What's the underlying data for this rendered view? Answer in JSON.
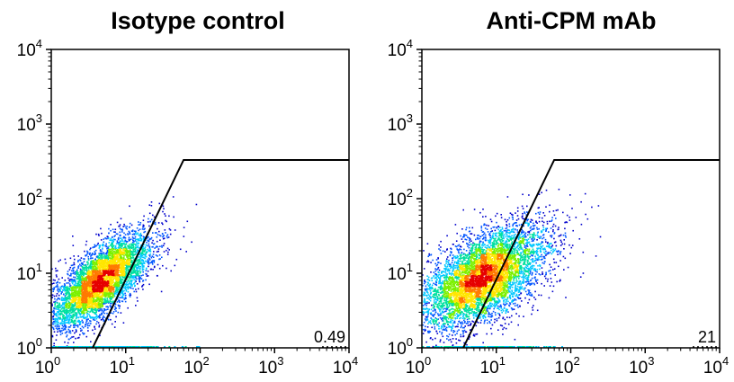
{
  "chart_data": [
    {
      "type": "scatter",
      "subtype": "flow-cytometry-density",
      "title": "Isotype control",
      "xlabel": "",
      "ylabel": "",
      "xscale": "log",
      "yscale": "log",
      "xlim": [
        1,
        10000
      ],
      "ylim": [
        1,
        10000
      ],
      "x_ticks": [
        {
          "base": "10",
          "exp": "0"
        },
        {
          "base": "10",
          "exp": "1"
        },
        {
          "base": "10",
          "exp": "2"
        },
        {
          "base": "10",
          "exp": "3"
        },
        {
          "base": "10",
          "exp": "4"
        }
      ],
      "y_ticks": [
        {
          "base": "10",
          "exp": "0"
        },
        {
          "base": "10",
          "exp": "1"
        },
        {
          "base": "10",
          "exp": "2"
        },
        {
          "base": "10",
          "exp": "3"
        },
        {
          "base": "10",
          "exp": "4"
        }
      ],
      "gate": {
        "vertices": [
          [
            3.6,
            1
          ],
          [
            60,
            330
          ],
          [
            10000,
            330
          ]
        ],
        "percent_label": "0.49"
      },
      "population": {
        "center": [
          4.5,
          8
        ],
        "spread": [
          0.34,
          0.32
        ],
        "correlation": 0.72,
        "count": 5200,
        "x_range": [
          1,
          120
        ],
        "y_range": [
          1,
          140
        ]
      },
      "density_colors": [
        "#0000cc",
        "#0055ff",
        "#00c8ff",
        "#00e0a0",
        "#7cf000",
        "#ffe600",
        "#ff7a00",
        "#e60000"
      ]
    },
    {
      "type": "scatter",
      "subtype": "flow-cytometry-density",
      "title": "Anti-CPM mAb",
      "xlabel": "",
      "ylabel": "",
      "xscale": "log",
      "yscale": "log",
      "xlim": [
        1,
        10000
      ],
      "ylim": [
        1,
        10000
      ],
      "x_ticks": [
        {
          "base": "10",
          "exp": "0"
        },
        {
          "base": "10",
          "exp": "1"
        },
        {
          "base": "10",
          "exp": "2"
        },
        {
          "base": "10",
          "exp": "3"
        },
        {
          "base": "10",
          "exp": "4"
        }
      ],
      "y_ticks": [
        {
          "base": "10",
          "exp": "0"
        },
        {
          "base": "10",
          "exp": "1"
        },
        {
          "base": "10",
          "exp": "2"
        },
        {
          "base": "10",
          "exp": "3"
        },
        {
          "base": "10",
          "exp": "4"
        }
      ],
      "gate": {
        "vertices": [
          [
            3.6,
            1
          ],
          [
            60,
            330
          ],
          [
            10000,
            330
          ]
        ],
        "percent_label": "21"
      },
      "population": {
        "center": [
          6.5,
          9
        ],
        "spread": [
          0.42,
          0.34
        ],
        "correlation": 0.55,
        "count": 6000,
        "x_range": [
          1,
          400
        ],
        "y_range": [
          1,
          250
        ]
      },
      "density_colors": [
        "#0000cc",
        "#0055ff",
        "#00c8ff",
        "#00e0a0",
        "#7cf000",
        "#ffe600",
        "#ff7a00",
        "#e60000"
      ]
    }
  ]
}
